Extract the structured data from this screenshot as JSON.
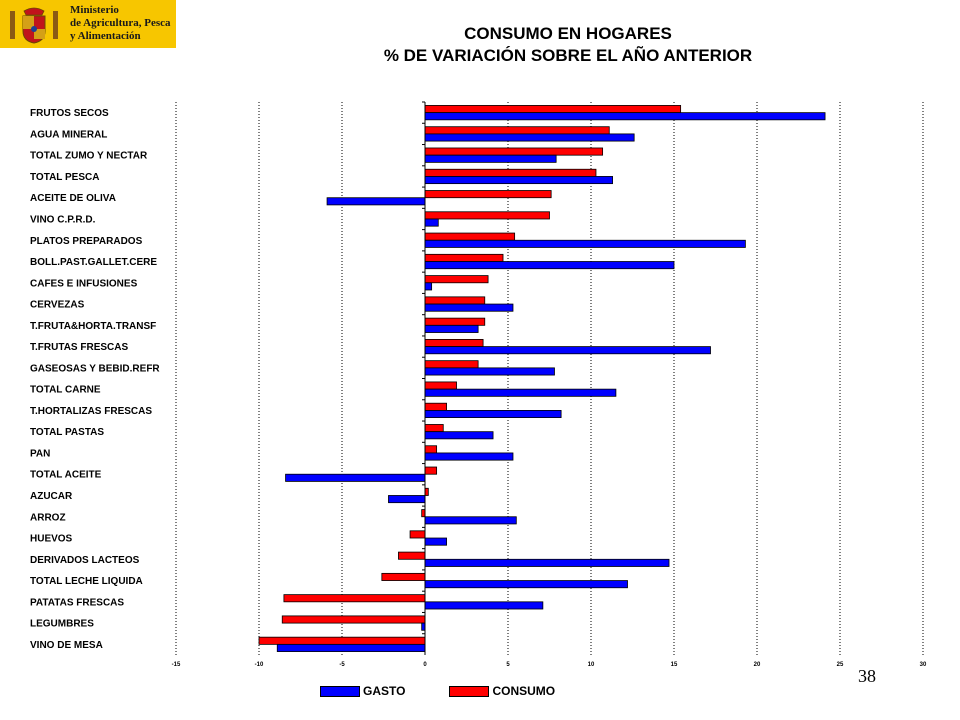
{
  "logo": {
    "lines": [
      "Ministerio",
      "de Agricultura, Pesca",
      "y Alimentación"
    ]
  },
  "title": {
    "line1": "CONSUMO EN HOGARES",
    "line2": "% DE VARIACIÓN SOBRE EL AÑO ANTERIOR"
  },
  "page_number": "38",
  "colors": {
    "gasto": "#0000ff",
    "consumo": "#ff0000",
    "logo_bg": "#f7c600"
  },
  "legend": {
    "gasto": "GASTO",
    "consumo": "CONSUMO"
  },
  "chart_data": {
    "type": "bar",
    "orientation": "horizontal",
    "title": "CONSUMO EN HOGARES % DE VARIACIÓN SOBRE EL AÑO ANTERIOR",
    "xlim": [
      -15,
      30
    ],
    "xticks": [
      -15,
      -10,
      -5,
      0,
      5,
      10,
      15,
      20,
      25,
      30
    ],
    "grid": "vertical-dotted",
    "legend_position": "bottom",
    "categories": [
      "FRUTOS SECOS",
      "AGUA MINERAL",
      "TOTAL ZUMO Y NECTAR",
      "TOTAL PESCA",
      "ACEITE DE OLIVA",
      "VINO C.P.R.D.",
      "PLATOS PREPARADOS",
      "BOLL.PAST.GALLET.CERE",
      "CAFES E INFUSIONES",
      "CERVEZAS",
      "T.FRUTA&HORTA.TRANSF",
      "T.FRUTAS FRESCAS",
      "GASEOSAS Y BEBID.REFR",
      "TOTAL CARNE",
      "T.HORTALIZAS FRESCAS",
      "TOTAL PASTAS",
      "PAN",
      "TOTAL ACEITE",
      "AZUCAR",
      "ARROZ",
      "HUEVOS",
      "DERIVADOS LACTEOS",
      "TOTAL LECHE LIQUIDA",
      "PATATAS FRESCAS",
      "LEGUMBRES",
      "VINO DE MESA"
    ],
    "series": [
      {
        "name": "CONSUMO",
        "values": [
          15.4,
          11.1,
          10.7,
          10.3,
          7.6,
          7.5,
          5.4,
          4.7,
          3.8,
          3.6,
          3.6,
          3.5,
          3.2,
          1.9,
          1.3,
          1.1,
          0.7,
          0.7,
          0.2,
          -0.2,
          -0.9,
          -1.6,
          -2.6,
          -8.5,
          -8.6,
          -10.0
        ]
      },
      {
        "name": "GASTO",
        "values": [
          24.1,
          12.6,
          7.9,
          11.3,
          -5.9,
          0.8,
          19.3,
          15.0,
          0.4,
          5.3,
          3.2,
          17.2,
          7.8,
          11.5,
          8.2,
          4.1,
          5.3,
          -8.4,
          -2.2,
          5.5,
          1.3,
          14.7,
          12.2,
          7.1,
          -0.2,
          -8.9
        ]
      }
    ]
  }
}
